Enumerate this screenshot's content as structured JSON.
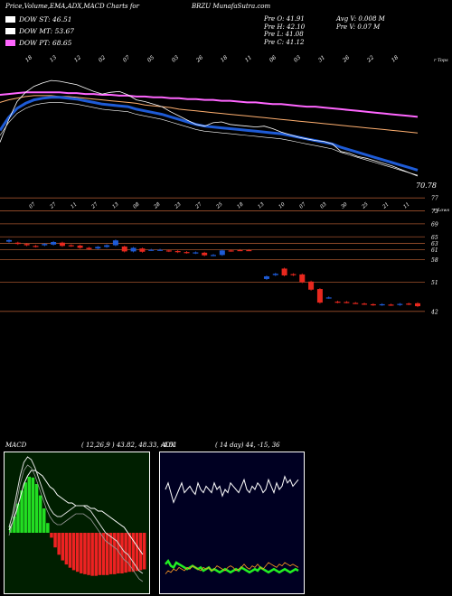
{
  "header": {
    "title": "Price,Volume,EMA,ADX,MACD Charts for",
    "symbol_site": "BRZU MunafaSutra.com",
    "quotes_col1": [
      "Pre  O: 41.91",
      "Pre  H: 42.10",
      "Pre  L: 41.08",
      "Pre  C: 41.12"
    ],
    "quotes_col2": [
      "Avg V: 0.008 M",
      "Pre  V: 0.07 M"
    ]
  },
  "legend": [
    {
      "label": "DOW ST: 46.51",
      "color": "#ffffff"
    },
    {
      "label": "DOW MT: 53.67",
      "color": "#ffffff"
    },
    {
      "label": "DOW PT: 68.65",
      "color": "#ff66ff"
    }
  ],
  "colors": {
    "up": "#1e5bd6",
    "down": "#e8281e",
    "ema_long": "#ff66ff",
    "ema_mid": "#ffb070",
    "avg": "#1e5bd6",
    "grid": "#a0522d"
  },
  "chart_data": [
    {
      "type": "line",
      "name": "price-ema",
      "x": [
        1,
        2,
        3,
        4,
        5,
        6,
        7,
        8,
        9,
        10,
        11,
        12,
        13,
        14,
        15,
        16,
        17,
        18,
        19,
        20,
        21,
        22,
        23,
        24,
        25,
        26,
        27,
        28,
        29,
        30,
        31,
        32,
        33,
        34,
        35,
        36,
        37,
        38,
        39,
        40,
        41,
        42,
        43,
        44,
        45,
        46,
        47,
        48,
        49,
        50
      ],
      "series": [
        {
          "values": [
            75.6,
            78.2,
            80.4,
            81.5,
            82.2,
            82.6,
            82.9,
            82.8,
            82.6,
            82.4,
            82.0,
            81.6,
            81.3,
            81.5,
            81.6,
            81.2,
            80.6,
            80.4,
            80.1,
            79.8,
            79.2,
            78.7,
            78.2,
            77.7,
            77.5,
            77.9,
            78.0,
            77.7,
            77.6,
            77.5,
            77.4,
            77.5,
            77.2,
            76.8,
            76.5,
            76.2,
            76.0,
            75.8,
            75.7,
            75.4,
            74.5,
            74.3,
            73.9,
            73.7,
            73.4,
            73.1,
            72.8,
            72.4,
            72.0,
            71.6
          ]
        },
        {
          "values": [
            77.0,
            78.5,
            79.6,
            80.2,
            80.6,
            80.8,
            80.9,
            80.9,
            80.8,
            80.7,
            80.5,
            80.3,
            80.1,
            80.0,
            79.9,
            79.8,
            79.5,
            79.3,
            79.1,
            78.9,
            78.6,
            78.3,
            78.0,
            77.7,
            77.5,
            77.4,
            77.3,
            77.2,
            77.1,
            77.0,
            76.9,
            76.8,
            76.7,
            76.6,
            76.4,
            76.2,
            76.0,
            75.8,
            75.6,
            75.4,
            75.0,
            74.7,
            74.4,
            74.1,
            73.8,
            73.5,
            73.2,
            72.9,
            72.6,
            72.3
          ]
        },
        {
          "values": [
            80.3,
            80.6,
            80.8,
            81.0,
            81.1,
            81.1,
            81.1,
            81.0,
            81.0,
            80.9,
            80.8,
            80.7,
            80.6,
            80.5,
            80.4,
            80.3,
            80.2,
            80.0,
            79.9,
            79.8,
            79.7,
            79.5,
            79.4,
            79.3,
            79.2,
            79.1,
            79.0,
            78.9,
            78.8,
            78.7,
            78.6,
            78.5,
            78.4,
            78.3,
            78.2,
            78.1,
            78.0,
            77.9,
            77.8,
            77.7,
            77.6,
            77.5,
            77.4,
            77.3,
            77.2,
            77.1,
            77.0,
            76.9,
            76.8,
            76.7
          ]
        },
        {
          "values": [
            81.2,
            81.3,
            81.4,
            81.5,
            81.5,
            81.5,
            81.5,
            81.5,
            81.4,
            81.4,
            81.3,
            81.3,
            81.2,
            81.2,
            81.1,
            81.1,
            81.0,
            81.0,
            80.9,
            80.9,
            80.8,
            80.8,
            80.7,
            80.7,
            80.6,
            80.6,
            80.5,
            80.5,
            80.4,
            80.3,
            80.3,
            80.2,
            80.1,
            80.1,
            80.0,
            79.9,
            79.8,
            79.8,
            79.7,
            79.6,
            79.5,
            79.4,
            79.3,
            79.2,
            79.1,
            79.0,
            78.9,
            78.8,
            78.7,
            78.6
          ]
        }
      ],
      "ylabel_values": [
        "70.78"
      ]
    },
    {
      "type": "bar",
      "name": "candles",
      "axis_right_ticks": [
        "77",
        "73",
        "69",
        "65",
        "63",
        "61",
        "58",
        "51",
        "42"
      ],
      "axis_right_tick_values": [
        77,
        73,
        69,
        65,
        63,
        61,
        58,
        51,
        42
      ],
      "bars_open": [
        63.5,
        63.2,
        62.8,
        62.2,
        62.4,
        62.6,
        63.2,
        62.4,
        62.3,
        61.6,
        61.4,
        61.9,
        62.4,
        62.0,
        60.5,
        61.4,
        61.0,
        61.0,
        60.8,
        60.6,
        60.3,
        60.0,
        60.1,
        59.3,
        59.4,
        60.8,
        60.9,
        60.9,
        null,
        52.0,
        53.2,
        55.2,
        53.5,
        53.4,
        51.2,
        48.9,
        46.2,
        45.0,
        44.9,
        44.6,
        44.4,
        44.2,
        44.0,
        44.1,
        44.0,
        44.2,
        44.5
      ],
      "bars_close": [
        64.0,
        62.8,
        62.4,
        62.0,
        62.8,
        63.4,
        62.2,
        62.2,
        61.6,
        61.2,
        61.9,
        62.4,
        63.9,
        60.5,
        61.6,
        60.4,
        61.0,
        61.0,
        60.6,
        60.3,
        60.1,
        60.2,
        59.3,
        59.4,
        60.8,
        60.7,
        60.9,
        60.9,
        null,
        52.8,
        53.6,
        53.1,
        53.2,
        51.0,
        48.7,
        44.7,
        46.3,
        44.8,
        44.8,
        44.6,
        44.3,
        44.0,
        44.2,
        44.0,
        44.3,
        44.4,
        43.6
      ],
      "up_down": [
        "up",
        "down",
        "down",
        "down",
        "up",
        "up",
        "down",
        "down",
        "down",
        "down",
        "up",
        "up",
        "up",
        "down",
        "up",
        "down",
        "up",
        "up",
        "down",
        "down",
        "down",
        "up",
        "down",
        "up",
        "up",
        "down",
        "down",
        "down",
        null,
        "up",
        "up",
        "down",
        "down",
        "down",
        "down",
        "down",
        "up",
        "down",
        "down",
        "down",
        "down",
        "down",
        "up",
        "down",
        "up",
        "down",
        "down"
      ]
    },
    {
      "type": "line",
      "name": "macd",
      "panel_label": "MACD",
      "params": "( 12,26,9 ) 43.82,  48.33,  -4.51",
      "histogram": [
        0.8,
        2.0,
        3.6,
        5.2,
        6.2,
        6.9,
        6.8,
        6.0,
        4.6,
        3.0,
        1.2,
        -0.6,
        -1.8,
        -2.7,
        -3.4,
        -3.9,
        -4.3,
        -4.6,
        -4.8,
        -5.0,
        -5.1,
        -5.2,
        -5.3,
        -5.3,
        -5.2,
        -5.2,
        -5.2,
        -5.1,
        -5.1,
        -5.0,
        -5.0,
        -4.9,
        -4.8,
        -4.8,
        -4.7,
        -4.6,
        -4.5
      ],
      "macd_line": [
        2,
        7,
        14,
        21,
        26,
        28,
        27,
        24,
        20,
        16,
        12,
        9,
        7,
        6,
        6,
        7,
        8,
        9,
        10,
        10,
        10,
        9,
        8,
        6,
        4,
        2,
        0,
        -1,
        -2,
        -3,
        -5,
        -7,
        -8,
        -10,
        -12,
        -14,
        -15
      ],
      "signal_line": [
        1,
        4,
        8,
        13,
        18,
        21,
        23,
        23,
        22,
        21,
        19,
        17,
        16,
        14,
        13,
        12,
        11,
        11,
        10,
        10,
        10,
        10,
        9,
        9,
        8,
        8,
        7,
        6,
        5,
        4,
        3,
        2,
        0,
        -2,
        -4,
        -6,
        -8
      ]
    },
    {
      "type": "line",
      "name": "adx",
      "panel_label": "ADX",
      "params": "( 14  day) 44, -15,  36",
      "series": [
        {
          "name": "adx",
          "values": [
            60,
            64,
            58,
            52,
            56,
            60,
            64,
            58,
            60,
            62,
            59,
            57,
            64,
            60,
            58,
            62,
            60,
            58,
            64,
            60,
            62,
            56,
            60,
            58,
            64,
            62,
            60,
            58,
            62,
            66,
            60,
            58,
            62,
            60,
            64,
            62,
            58,
            60,
            66,
            62,
            58,
            64,
            60,
            62,
            68,
            64,
            66,
            62,
            64,
            66
          ]
        },
        {
          "name": "pdi",
          "values": [
            8,
            10,
            9,
            11,
            10,
            12,
            11,
            10,
            12,
            11,
            13,
            12,
            11,
            10,
            12,
            11,
            12,
            10,
            11,
            13,
            12,
            11,
            10,
            12,
            13,
            12,
            10,
            11,
            12,
            14,
            12,
            11,
            13,
            12,
            14,
            12,
            11,
            13,
            15,
            14,
            13,
            12,
            14,
            13,
            15,
            14,
            13,
            14,
            13,
            12
          ]
        },
        {
          "name": "ndi",
          "values": [
            14,
            16,
            13,
            12,
            15,
            14,
            13,
            12,
            11,
            12,
            13,
            12,
            11,
            12,
            10,
            11,
            12,
            10,
            11,
            10,
            9,
            10,
            11,
            10,
            9,
            10,
            11,
            10,
            12,
            11,
            10,
            9,
            10,
            11,
            10,
            12,
            11,
            10,
            9,
            10,
            11,
            10,
            9,
            10,
            11,
            10,
            9,
            10,
            11,
            10
          ]
        }
      ]
    }
  ],
  "price_top_labels": [
    "18",
    "13",
    "12",
    "02",
    "07",
    "05",
    "03",
    "26",
    "18",
    "11",
    "06",
    "03",
    "31",
    "26",
    "22",
    "18"
  ],
  "price_top_right": "r Tops",
  "candle_top_labels": [
    "07",
    "27",
    "11",
    "27",
    "13",
    "08",
    "28",
    "23",
    "27",
    "25",
    "18",
    "13",
    "10",
    "07",
    "03",
    "30",
    "25",
    "21",
    "11"
  ],
  "candle_top_right": "r Lows",
  "chevron_right": "›"
}
